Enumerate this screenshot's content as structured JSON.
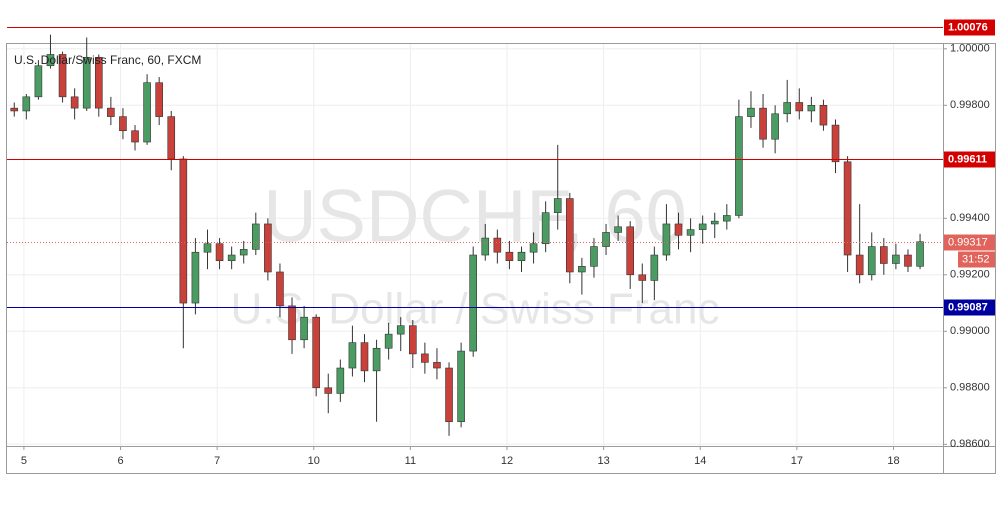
{
  "chart_data": {
    "type": "candlestick",
    "title": "U.S. Dollar/Swiss Franc, 60, FXCM",
    "watermark": "USDCHF, 60",
    "watermark_subtitle": "U.S. Dollar / Swiss Franc",
    "up_color": "#4a9c62",
    "down_color": "#c8413b",
    "open": [
      0.9979,
      0.9978,
      0.9983,
      0.9994,
      0.9998,
      0.9983,
      0.9979,
      0.9997,
      0.9979,
      0.9976,
      0.9971,
      0.9967,
      0.9988,
      0.9976,
      0.9961,
      0.991,
      0.9928,
      0.9931,
      0.9925,
      0.9927,
      0.9929,
      0.9938,
      0.9921,
      0.9909,
      0.9897,
      0.9905,
      0.988,
      0.9878,
      0.9887,
      0.9896,
      0.9886,
      0.9894,
      0.9899,
      0.9902,
      0.9892,
      0.9889,
      0.9887,
      0.9868,
      0.9893,
      0.9927,
      0.9933,
      0.9928,
      0.9925,
      0.9928,
      0.9931,
      0.9942,
      0.9947,
      0.9921,
      0.9923,
      0.993,
      0.9935,
      0.9937,
      0.992,
      0.9918,
      0.9927,
      0.9938,
      0.9934,
      0.9936,
      0.9938,
      0.9939,
      0.9941,
      0.9976,
      0.9979,
      0.9968,
      0.9977,
      0.9981,
      0.9978,
      0.998,
      0.9973,
      0.996,
      0.9927,
      0.992,
      0.993,
      0.9924,
      0.9927,
      0.9923
    ],
    "high": [
      0.9981,
      0.9984,
      0.9996,
      1.0005,
      0.9999,
      0.9986,
      1.0004,
      0.9998,
      0.9983,
      0.9979,
      0.9973,
      0.9991,
      0.999,
      0.9978,
      0.9962,
      0.9933,
      0.9936,
      0.9933,
      0.993,
      0.9932,
      0.9942,
      0.994,
      0.9924,
      0.9912,
      0.9909,
      0.9906,
      0.9885,
      0.989,
      0.9902,
      0.9899,
      0.9897,
      0.9903,
      0.9905,
      0.9904,
      0.9896,
      0.9894,
      0.9889,
      0.9896,
      0.993,
      0.9938,
      0.9936,
      0.9932,
      0.993,
      0.9935,
      0.9946,
      0.9966,
      0.9949,
      0.9926,
      0.9933,
      0.9938,
      0.9941,
      0.9939,
      0.9924,
      0.993,
      0.9945,
      0.9942,
      0.994,
      0.9941,
      0.9942,
      0.9945,
      0.9982,
      0.9985,
      0.9984,
      0.998,
      0.9989,
      0.9986,
      0.9983,
      0.9982,
      0.9975,
      0.9962,
      0.9945,
      0.9935,
      0.9933,
      0.9931,
      0.9929,
      0.99345
    ],
    "low": [
      0.9976,
      0.9975,
      0.9982,
      0.9993,
      0.9981,
      0.9975,
      0.9978,
      0.9976,
      0.9973,
      0.9968,
      0.9964,
      0.9966,
      0.9973,
      0.9957,
      0.9894,
      0.9906,
      0.9922,
      0.9922,
      0.9922,
      0.9924,
      0.9927,
      0.9918,
      0.9905,
      0.9892,
      0.9894,
      0.9877,
      0.9871,
      0.9875,
      0.9884,
      0.9882,
      0.9868,
      0.989,
      0.9893,
      0.9887,
      0.9885,
      0.9883,
      0.9863,
      0.9866,
      0.9891,
      0.9925,
      0.9924,
      0.9922,
      0.9921,
      0.9924,
      0.9928,
      0.9936,
      0.9917,
      0.9913,
      0.9919,
      0.9927,
      0.9932,
      0.9915,
      0.991,
      0.9911,
      0.9925,
      0.9929,
      0.9928,
      0.9931,
      0.9933,
      0.9936,
      0.994,
      0.9972,
      0.9965,
      0.9963,
      0.9974,
      0.9975,
      0.9974,
      0.9971,
      0.9956,
      0.9921,
      0.9917,
      0.9918,
      0.992,
      0.9922,
      0.9921,
      0.9922
    ],
    "close": [
      0.9978,
      0.9983,
      0.9994,
      0.9998,
      0.9983,
      0.9979,
      0.9997,
      0.9979,
      0.9976,
      0.9971,
      0.9967,
      0.9988,
      0.9976,
      0.9961,
      0.991,
      0.9928,
      0.9931,
      0.9925,
      0.9927,
      0.9929,
      0.9938,
      0.9921,
      0.9909,
      0.9897,
      0.9905,
      0.988,
      0.9878,
      0.9887,
      0.9896,
      0.9886,
      0.9894,
      0.9899,
      0.9902,
      0.9892,
      0.9889,
      0.9887,
      0.9868,
      0.9893,
      0.9927,
      0.9933,
      0.9928,
      0.9925,
      0.9928,
      0.9931,
      0.9942,
      0.9947,
      0.9921,
      0.9923,
      0.993,
      0.9935,
      0.9937,
      0.992,
      0.9918,
      0.9927,
      0.9938,
      0.9934,
      0.9936,
      0.9938,
      0.9939,
      0.9941,
      0.9976,
      0.9979,
      0.9968,
      0.9977,
      0.9981,
      0.9978,
      0.998,
      0.9973,
      0.996,
      0.9927,
      0.992,
      0.993,
      0.9924,
      0.9927,
      0.9923,
      0.99317
    ],
    "xlim": [
      -0.6,
      76.9
    ],
    "xticks": [
      {
        "value": 0.8,
        "label": "5"
      },
      {
        "value": 8.8,
        "label": "6"
      },
      {
        "value": 16.8,
        "label": "7"
      },
      {
        "value": 24.8,
        "label": "10"
      },
      {
        "value": 32.8,
        "label": "11"
      },
      {
        "value": 40.8,
        "label": "12"
      },
      {
        "value": 48.8,
        "label": "13"
      },
      {
        "value": 56.8,
        "label": "14"
      },
      {
        "value": 64.8,
        "label": "17"
      },
      {
        "value": 72.8,
        "label": "18"
      }
    ],
    "ylim": [
      0.98594,
      1.00017
    ],
    "yticks": [
      {
        "value": 0.986,
        "label": "0.98600"
      },
      {
        "value": 0.988,
        "label": "0.98800"
      },
      {
        "value": 0.99,
        "label": "0.99000"
      },
      {
        "value": 0.992,
        "label": "0.99200"
      },
      {
        "value": 0.994,
        "label": "0.99400"
      },
      {
        "value": 0.998,
        "label": "0.99800"
      },
      {
        "value": 1,
        "label": "1.00000"
      }
    ],
    "grid": true,
    "levels": [
      {
        "value": 1.00076,
        "color": "#d40000"
      },
      {
        "value": 0.99611,
        "color": "#d40000"
      },
      {
        "value": 0.99087,
        "color": "#0000a0"
      }
    ],
    "last_price": {
      "value": 0.99317,
      "color": "#e0645c",
      "countdown": "31:52"
    }
  }
}
